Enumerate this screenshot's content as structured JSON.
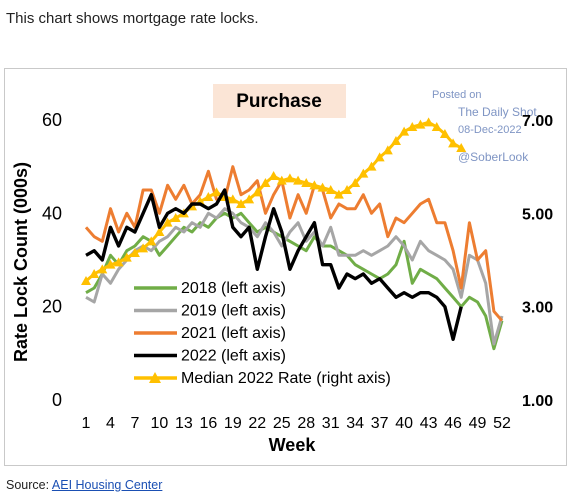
{
  "intro": "This chart shows mortgage rate locks.",
  "source": {
    "label": "Source:",
    "link_text": "AEI Housing Center"
  },
  "watermark": {
    "line1": "Posted on",
    "line2": "The Daily Shot",
    "line3": "08-Dec-2022",
    "line4": "@SoberLook"
  },
  "colors": {
    "y2018": "#70ad47",
    "y2019": "#a6a6a6",
    "y2021": "#ed7d31",
    "y2022": "#000000",
    "rate": "#ffc000",
    "title_box": "#fbe5d6"
  },
  "chart_data": {
    "type": "line",
    "title": "Purchase",
    "xlabel": "Week",
    "ylabel": "Rate Lock Count (000s)",
    "ylim": [
      0,
      60
    ],
    "y_ticks": [
      "0",
      "20",
      "40",
      "60"
    ],
    "y2lim": [
      1.0,
      7.0
    ],
    "y2_ticks": [
      "1.00",
      "3.00",
      "5.00",
      "7.00"
    ],
    "x_ticks": [
      "1",
      "4",
      "7",
      "10",
      "13",
      "16",
      "19",
      "22",
      "25",
      "28",
      "31",
      "34",
      "37",
      "40",
      "43",
      "46",
      "49",
      "52"
    ],
    "legend_position": "bottom-left",
    "series": [
      {
        "name": "2018 (left axis)",
        "axis": "left",
        "x_start": 1,
        "values": [
          23,
          24,
          27,
          31,
          29,
          32,
          33,
          35,
          34,
          31,
          33,
          35,
          37,
          36,
          38,
          37,
          39,
          40,
          39,
          40,
          38,
          36,
          37,
          36,
          35,
          34,
          33,
          32,
          35,
          33,
          33,
          32,
          31,
          29,
          28,
          27,
          26,
          27,
          29,
          34,
          25,
          28,
          27,
          26,
          24,
          22,
          20,
          22,
          21,
          18,
          11,
          17
        ]
      },
      {
        "name": "2019 (left axis)",
        "axis": "left",
        "x_start": 1,
        "values": [
          22,
          21,
          27,
          25,
          28,
          30,
          32,
          33,
          32,
          34,
          35,
          37,
          36,
          38,
          37,
          40,
          39,
          41,
          40,
          38,
          37,
          35,
          38,
          36,
          33,
          36,
          38,
          34,
          36,
          33,
          37,
          31,
          31,
          31,
          32,
          31,
          32,
          33,
          35,
          33,
          30,
          34,
          32,
          31,
          30,
          28,
          22,
          31,
          30,
          25,
          12,
          18
        ]
      },
      {
        "name": "2021 (left axis)",
        "axis": "left",
        "x_start": 1,
        "values": [
          37,
          35,
          34,
          41,
          36,
          40,
          37,
          45,
          45,
          40,
          46,
          43,
          46,
          42,
          44,
          49,
          43,
          43,
          50,
          44,
          45,
          47,
          40,
          44,
          47,
          39,
          44,
          40,
          46,
          45,
          39,
          42,
          41,
          41,
          44,
          40,
          42,
          35,
          39,
          38,
          40,
          42,
          43,
          38,
          38,
          32,
          24,
          38,
          30,
          32,
          19,
          17
        ]
      },
      {
        "name": "2022 (left axis)",
        "axis": "left",
        "x_start": 1,
        "values": [
          31,
          32,
          30,
          37,
          33,
          37,
          36,
          40,
          44,
          37,
          40,
          41,
          40,
          42,
          42,
          41,
          42,
          45,
          37,
          35,
          37,
          28,
          35,
          41,
          36,
          28,
          32,
          35,
          38,
          29,
          29,
          24,
          27,
          26,
          27,
          25,
          26,
          24,
          22,
          23,
          22,
          23,
          23,
          22,
          20,
          13,
          20
        ]
      },
      {
        "name": "Median 2022 Rate (right axis)",
        "axis": "right",
        "x_start": 1,
        "values": [
          3.55,
          3.7,
          3.8,
          3.9,
          3.95,
          4.05,
          4.15,
          4.25,
          4.4,
          4.6,
          4.8,
          4.9,
          5.0,
          5.15,
          5.25,
          5.35,
          5.45,
          5.35,
          5.3,
          5.2,
          5.3,
          5.45,
          5.65,
          5.8,
          5.7,
          5.75,
          5.7,
          5.65,
          5.6,
          5.55,
          5.5,
          5.4,
          5.5,
          5.65,
          5.85,
          6.0,
          6.2,
          6.35,
          6.55,
          6.75,
          6.85,
          6.9,
          6.95,
          6.85,
          6.7,
          6.5,
          6.4
        ]
      }
    ]
  }
}
